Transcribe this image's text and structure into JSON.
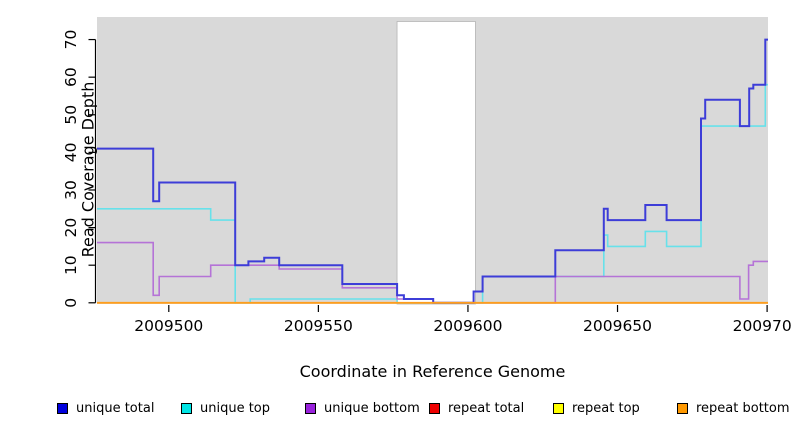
{
  "chart_data": {
    "type": "line",
    "step_style": "post",
    "title": "",
    "xlabel": "Coordinate in Reference Genome",
    "ylabel": "Read Coverage Depth",
    "xlim": [
      2009476,
      2009700.3
    ],
    "ylim": [
      0,
      76
    ],
    "x_ticks": [
      2009500,
      2009550,
      2009600,
      2009650,
      2009700
    ],
    "y_ticks": [
      0,
      10,
      20,
      30,
      40,
      50,
      60,
      70
    ],
    "plot_bg": "#d9d9d9",
    "grid": false,
    "legend_position": "bottom",
    "masked_region": {
      "x0": 2009576.3,
      "x1": 2009602.5,
      "fill": "#ffffff",
      "border": "#b5b5b5"
    },
    "draw_order": [
      "repeat total",
      "repeat top",
      "unique top",
      "unique bottom",
      "unique total",
      "repeat bottom"
    ],
    "series": [
      {
        "name": "unique total",
        "line_color": "#3d3dd8",
        "legend_color": "#0000dd",
        "line_width": 2,
        "points": [
          [
            2009476,
            41
          ],
          [
            2009494.8,
            27
          ],
          [
            2009496.8,
            32
          ],
          [
            2009522.2,
            10
          ],
          [
            2009526.6,
            11
          ],
          [
            2009531.9,
            12
          ],
          [
            2009536.9,
            10
          ],
          [
            2009558,
            5
          ],
          [
            2009576.3,
            2
          ],
          [
            2009578.6,
            1
          ],
          [
            2009588.4,
            0
          ],
          [
            2009601.9,
            3
          ],
          [
            2009604.9,
            7
          ],
          [
            2009629.2,
            14
          ],
          [
            2009645.4,
            25
          ],
          [
            2009646.7,
            22
          ],
          [
            2009659.3,
            26
          ],
          [
            2009666.4,
            22
          ],
          [
            2009677.9,
            49
          ],
          [
            2009679.3,
            54
          ],
          [
            2009690.9,
            47
          ],
          [
            2009694,
            57
          ],
          [
            2009695.4,
            58
          ],
          [
            2009699.4,
            70
          ]
        ]
      },
      {
        "name": "unique top",
        "line_color": "#67e1ea",
        "legend_color": "#00e5e5",
        "line_width": 1.6,
        "points": [
          [
            2009476,
            25
          ],
          [
            2009514,
            22
          ],
          [
            2009522.2,
            0
          ],
          [
            2009527.2,
            1
          ],
          [
            2009576.3,
            0
          ],
          [
            2009604.9,
            7
          ],
          [
            2009645.4,
            18
          ],
          [
            2009646.7,
            15
          ],
          [
            2009659.3,
            19
          ],
          [
            2009666.4,
            15
          ],
          [
            2009677.9,
            47
          ],
          [
            2009699.4,
            58
          ]
        ]
      },
      {
        "name": "unique bottom",
        "line_color": "#b573d7",
        "legend_color": "#9922dd",
        "line_width": 1.6,
        "points": [
          [
            2009476,
            16
          ],
          [
            2009494.8,
            2
          ],
          [
            2009496.8,
            7
          ],
          [
            2009514,
            10
          ],
          [
            2009536.9,
            9
          ],
          [
            2009558,
            4
          ],
          [
            2009576.3,
            1
          ],
          [
            2009588.4,
            0
          ],
          [
            2009629.2,
            7
          ],
          [
            2009690.9,
            1
          ],
          [
            2009693.8,
            10
          ],
          [
            2009695.4,
            11
          ]
        ]
      },
      {
        "name": "repeat total",
        "line_color": "#e03030",
        "legend_color": "#ee0000",
        "line_width": 1.3,
        "points": [
          [
            2009476,
            0
          ]
        ]
      },
      {
        "name": "repeat top",
        "line_color": "#f2f200",
        "legend_color": "#ffff00",
        "line_width": 1.3,
        "points": [
          [
            2009476,
            0
          ]
        ]
      },
      {
        "name": "repeat bottom",
        "line_color": "#ff9e1b",
        "legend_color": "#ff9900",
        "line_width": 1.8,
        "points": [
          [
            2009476,
            0
          ]
        ]
      }
    ]
  }
}
